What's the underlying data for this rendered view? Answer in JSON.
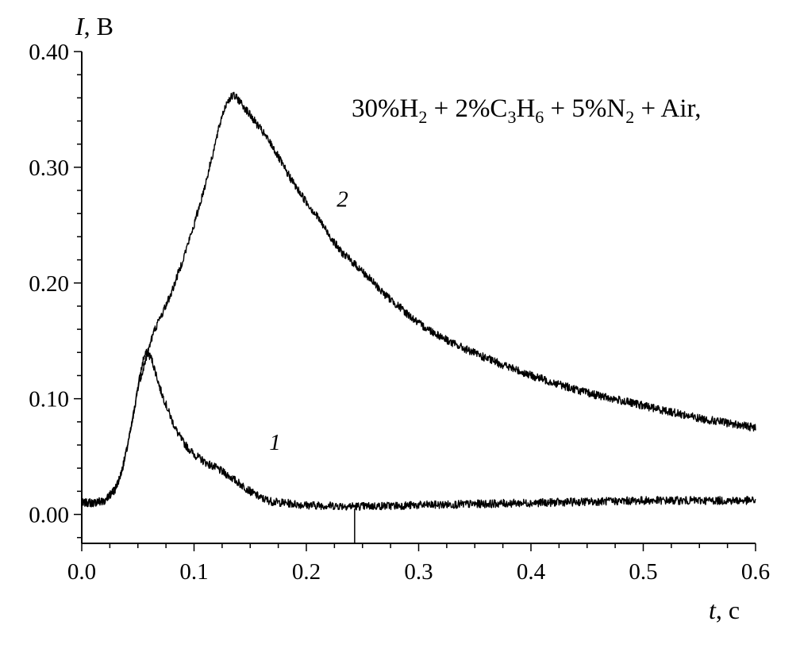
{
  "chart_data": {
    "type": "line",
    "title": "",
    "formula": {
      "parts": [
        {
          "text": "30%H",
          "sub": "2"
        },
        {
          "text": " + 2%C",
          "sub": "3"
        },
        {
          "text": "H",
          "sub": "6"
        },
        {
          "text": " + 5%N",
          "sub": "2"
        },
        {
          "text": " + Air,",
          "sub": ""
        }
      ]
    },
    "xlabel": {
      "var": "t",
      "unit": ", c"
    },
    "ylabel": {
      "var": "I",
      "unit": ", B"
    },
    "xlim": [
      0.0,
      0.6
    ],
    "ylim": [
      -0.025,
      0.4
    ],
    "xticks": [
      {
        "value": 0.0,
        "label": "0.0"
      },
      {
        "value": 0.1,
        "label": "0.1"
      },
      {
        "value": 0.2,
        "label": "0.2"
      },
      {
        "value": 0.3,
        "label": "0.3"
      },
      {
        "value": 0.4,
        "label": "0.4"
      },
      {
        "value": 0.5,
        "label": "0.5"
      },
      {
        "value": 0.6,
        "label": "0.6"
      }
    ],
    "yticks": [
      {
        "value": 0.0,
        "label": "0.00"
      },
      {
        "value": 0.1,
        "label": "0.10"
      },
      {
        "value": 0.2,
        "label": "0.20"
      },
      {
        "value": 0.3,
        "label": "0.30"
      },
      {
        "value": 0.4,
        "label": "0.40"
      }
    ],
    "grid": false,
    "marker_line_x": 0.243,
    "series": [
      {
        "label": "1",
        "label_at": [
          0.167,
          0.056
        ],
        "x": [
          0.0,
          0.01,
          0.02,
          0.03,
          0.035,
          0.04,
          0.045,
          0.05,
          0.055,
          0.058,
          0.062,
          0.066,
          0.07,
          0.075,
          0.08,
          0.085,
          0.09,
          0.095,
          0.1,
          0.11,
          0.12,
          0.13,
          0.14,
          0.15,
          0.16,
          0.17,
          0.18,
          0.2,
          0.25,
          0.3,
          0.35,
          0.4,
          0.45,
          0.5,
          0.55,
          0.6
        ],
        "y": [
          0.01,
          0.01,
          0.012,
          0.022,
          0.035,
          0.055,
          0.08,
          0.11,
          0.135,
          0.14,
          0.135,
          0.122,
          0.108,
          0.095,
          0.082,
          0.071,
          0.063,
          0.057,
          0.052,
          0.045,
          0.04,
          0.034,
          0.027,
          0.02,
          0.014,
          0.011,
          0.01,
          0.008,
          0.007,
          0.008,
          0.009,
          0.01,
          0.011,
          0.012,
          0.012,
          0.012
        ]
      },
      {
        "label": "2",
        "label_at": [
          0.227,
          0.266
        ],
        "x": [
          0.0,
          0.01,
          0.02,
          0.03,
          0.035,
          0.04,
          0.045,
          0.05,
          0.055,
          0.06,
          0.065,
          0.07,
          0.08,
          0.09,
          0.1,
          0.11,
          0.12,
          0.125,
          0.13,
          0.135,
          0.14,
          0.15,
          0.16,
          0.17,
          0.18,
          0.19,
          0.2,
          0.21,
          0.22,
          0.23,
          0.25,
          0.27,
          0.3,
          0.33,
          0.36,
          0.4,
          0.45,
          0.5,
          0.55,
          0.6
        ],
        "y": [
          0.01,
          0.01,
          0.012,
          0.022,
          0.035,
          0.055,
          0.08,
          0.11,
          0.127,
          0.145,
          0.16,
          0.17,
          0.192,
          0.22,
          0.25,
          0.285,
          0.325,
          0.345,
          0.358,
          0.362,
          0.358,
          0.345,
          0.332,
          0.318,
          0.3,
          0.284,
          0.27,
          0.257,
          0.242,
          0.228,
          0.21,
          0.19,
          0.165,
          0.148,
          0.135,
          0.12,
          0.105,
          0.094,
          0.083,
          0.075
        ]
      }
    ]
  }
}
